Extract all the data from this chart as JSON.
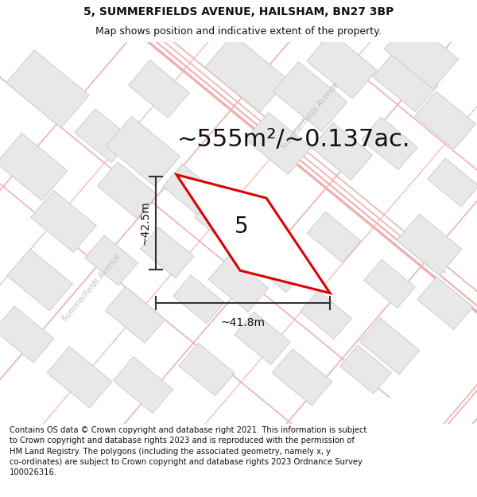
{
  "title": "5, SUMMERFIELDS AVENUE, HAILSHAM, BN27 3BP",
  "subtitle": "Map shows position and indicative extent of the property.",
  "area_text": "~555m²/~0.137ac.",
  "plot_number": "5",
  "dim_width": "~41.8m",
  "dim_height": "~42.5m",
  "background_color": "#ffffff",
  "map_bg": "#ffffff",
  "footer_text": "Contains OS data © Crown copyright and database right 2021. This information is subject to Crown copyright and database rights 2023 and is reproduced with the permission of HM Land Registry. The polygons (including the associated geometry, namely x, y co-ordinates) are subject to Crown copyright and database rights 2023 Ordnance Survey 100026316.",
  "road_color": "#f0b0b0",
  "building_fill": "#e8e8e8",
  "building_edge": "#cccccc",
  "plot_edge_color": "#dd0000",
  "plot_fill_color": "#ffffff",
  "dim_line_color": "#333333",
  "street_label_color": "#bbbbbb",
  "title_fontsize": 10,
  "subtitle_fontsize": 9,
  "area_fontsize": 22,
  "plot_num_fontsize": 20,
  "dim_fontsize": 10,
  "footer_fontsize": 7.2
}
